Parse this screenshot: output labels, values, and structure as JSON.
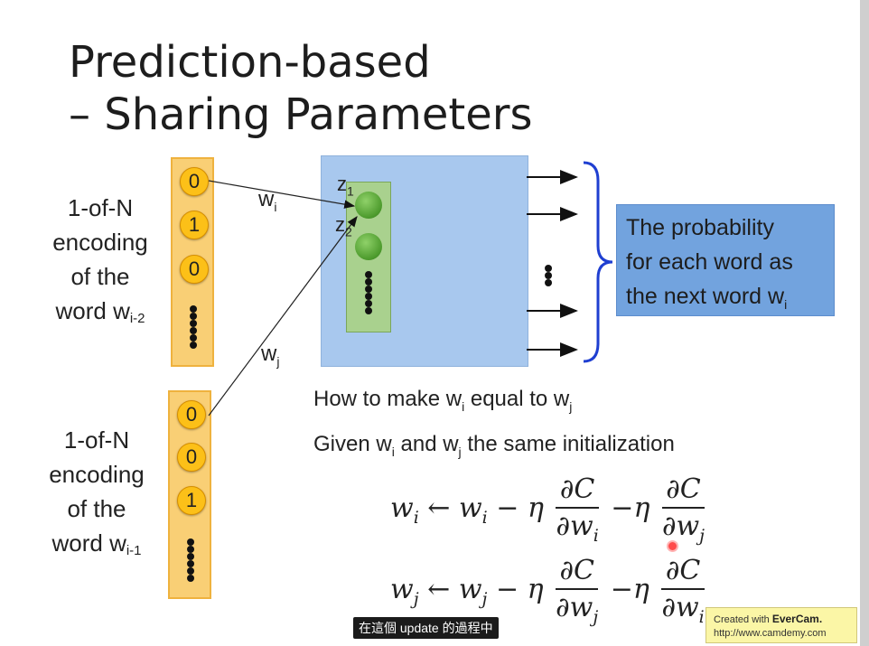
{
  "slide": {
    "title_line1": "Prediction-based",
    "title_line2": "– Sharing Parameters"
  },
  "inputs": {
    "top": {
      "label_lines": [
        "1-of-N",
        "encoding",
        "of the",
        "word w"
      ],
      "subscript": "i-2",
      "bits": [
        "0",
        "1",
        "0"
      ]
    },
    "bottom": {
      "label_lines": [
        "1-of-N",
        "encoding",
        "of the",
        "word w"
      ],
      "subscript": "i-1",
      "bits": [
        "0",
        "0",
        "1"
      ]
    },
    "dots": "⋮"
  },
  "weights": {
    "wi": "w",
    "wi_sub": "i",
    "wj": "w",
    "wj_sub": "j"
  },
  "hidden": {
    "z1": "z",
    "z1_sub": "1",
    "z2": "z",
    "z2_sub": "2"
  },
  "output_label": {
    "line1": "The probability",
    "line2": "for each word as",
    "line3": "the next word w",
    "line3_sub": "i",
    "dots": "⋮"
  },
  "text": {
    "line1_a": "How to make w",
    "line1_sub1": "i",
    "line1_b": " equal to w",
    "line1_sub2": "j",
    "line2_a": "Given w",
    "line2_sub1": "i",
    "line2_b": " and w",
    "line2_sub2": "j",
    "line2_c": " the same initialization"
  },
  "equations": {
    "eq1": {
      "lhs": "w",
      "lhs_sub": "i",
      "arrow": " ← ",
      "w": "w",
      "w_sub": "i",
      "minus_eta": " − η",
      "num1": "∂C",
      "den1": "∂w",
      "den1_sub": "i",
      "minus_eta2": " −η",
      "num2": "∂C",
      "den2": "∂w",
      "den2_sub": "j"
    },
    "eq2": {
      "lhs": "w",
      "lhs_sub": "j",
      "arrow": " ← ",
      "w": "w",
      "w_sub": "j",
      "minus_eta": " − η",
      "num1": "∂C",
      "den1": "∂w",
      "den1_sub": "j",
      "minus_eta2": " −η",
      "num2": "∂C",
      "den2": "∂w",
      "den2_sub": "i"
    }
  },
  "caption": "在這個 update 的過程中",
  "watermark": {
    "line1_prefix": "Created with ",
    "brand": "EverCam.",
    "url": "http://www.camdemy.com"
  },
  "colors": {
    "column_fill": "#f9cf75",
    "bubble": "#fcc018",
    "blue_box": "#a8c8ee",
    "green_box": "#a9d18e",
    "label_box": "#72a3de",
    "brace": "#1f3fd1"
  }
}
